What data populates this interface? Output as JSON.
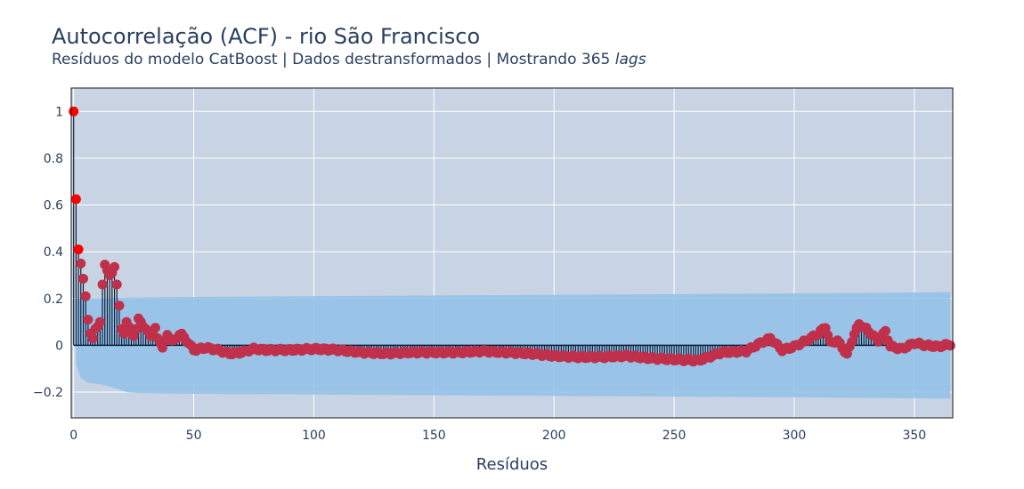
{
  "chart_data": {
    "type": "bar",
    "title": "Autocorrelação (ACF) - rio São Francisco",
    "subtitle_main": "Resíduos do modelo CatBoost | Dados destransformados | Mostrando 365 ",
    "subtitle_em": "lags",
    "xlabel": "Resíduos",
    "ylabel": "",
    "xlim": [
      -1,
      366
    ],
    "ylim": [
      -0.31,
      1.1
    ],
    "x_ticks": [
      0,
      50,
      100,
      150,
      200,
      250,
      300,
      350
    ],
    "y_ticks": [
      -0.2,
      0,
      0.2,
      0.4,
      0.6,
      0.8,
      1
    ],
    "y_tick_labels": [
      "−0.2",
      "0",
      "0.2",
      "0.4",
      "0.6",
      "0.8",
      "1"
    ],
    "grid": true,
    "legend": "none",
    "lag_max": 365,
    "acf_head": [
      1.0,
      0.625,
      0.41,
      0.35,
      0.285,
      0.21,
      0.11,
      0.05,
      0.03,
      0.07,
      0.08,
      0.1,
      0.26,
      0.345,
      0.32,
      0.3,
      0.31,
      0.335,
      0.26,
      0.17,
      0.07,
      0.05,
      0.1,
      0.08,
      0.05,
      0.04,
      0.07,
      0.115,
      0.1,
      0.08,
      0.07,
      0.06,
      0.04,
      0.05,
      0.075,
      0.03,
      0.01,
      -0.01,
      0.02,
      0.045,
      0.03,
      0.02,
      0.025,
      0.03,
      0.045,
      0.05,
      0.035
    ],
    "acf_tail_anchors": [
      [
        46,
        0.035
      ],
      [
        50,
        -0.02
      ],
      [
        55,
        -0.01
      ],
      [
        60,
        -0.02
      ],
      [
        65,
        -0.035
      ],
      [
        70,
        -0.03
      ],
      [
        75,
        -0.015
      ],
      [
        80,
        -0.02
      ],
      [
        90,
        -0.02
      ],
      [
        100,
        -0.015
      ],
      [
        110,
        -0.02
      ],
      [
        120,
        -0.03
      ],
      [
        130,
        -0.035
      ],
      [
        140,
        -0.03
      ],
      [
        150,
        -0.03
      ],
      [
        160,
        -0.03
      ],
      [
        170,
        -0.025
      ],
      [
        180,
        -0.03
      ],
      [
        190,
        -0.035
      ],
      [
        200,
        -0.045
      ],
      [
        210,
        -0.05
      ],
      [
        220,
        -0.05
      ],
      [
        230,
        -0.045
      ],
      [
        240,
        -0.055
      ],
      [
        250,
        -0.06
      ],
      [
        260,
        -0.065
      ],
      [
        270,
        -0.03
      ],
      [
        280,
        -0.025
      ],
      [
        285,
        0.005
      ],
      [
        290,
        0.03
      ],
      [
        295,
        -0.02
      ],
      [
        300,
        -0.005
      ],
      [
        305,
        0.02
      ],
      [
        310,
        0.05
      ],
      [
        313,
        0.08
      ],
      [
        315,
        0.01
      ],
      [
        318,
        0.02
      ],
      [
        322,
        -0.04
      ],
      [
        325,
        0.05
      ],
      [
        327,
        0.09
      ],
      [
        330,
        0.07
      ],
      [
        335,
        0.02
      ],
      [
        338,
        0.06
      ],
      [
        340,
        -0.005
      ],
      [
        345,
        -0.015
      ],
      [
        350,
        0.01
      ],
      [
        355,
        0.0
      ],
      [
        360,
        -0.005
      ],
      [
        365,
        0.005
      ]
    ],
    "conf_lower_anchors": [
      [
        1,
        -0.08
      ],
      [
        3,
        -0.14
      ],
      [
        6,
        -0.16
      ],
      [
        10,
        -0.165
      ],
      [
        13,
        -0.17
      ],
      [
        18,
        -0.185
      ],
      [
        22,
        -0.2
      ],
      [
        30,
        -0.205
      ],
      [
        50,
        -0.207
      ],
      [
        100,
        -0.21
      ],
      [
        150,
        -0.213
      ],
      [
        200,
        -0.216
      ],
      [
        250,
        -0.219
      ],
      [
        300,
        -0.222
      ],
      [
        350,
        -0.226
      ],
      [
        365,
        -0.228
      ]
    ],
    "conf_upper_anchors": [
      [
        1,
        0.2
      ],
      [
        30,
        0.205
      ],
      [
        50,
        0.207
      ],
      [
        100,
        0.21
      ],
      [
        150,
        0.213
      ],
      [
        200,
        0.216
      ],
      [
        250,
        0.219
      ],
      [
        300,
        0.222
      ],
      [
        350,
        0.226
      ],
      [
        365,
        0.228
      ]
    ],
    "colors": {
      "background": "#c8d4e3",
      "grid": "#ffffff",
      "band": "#90bfe8",
      "stem": "#0a1f3a",
      "marker": "#c0304a",
      "marker_strong": "#ff0000"
    }
  }
}
